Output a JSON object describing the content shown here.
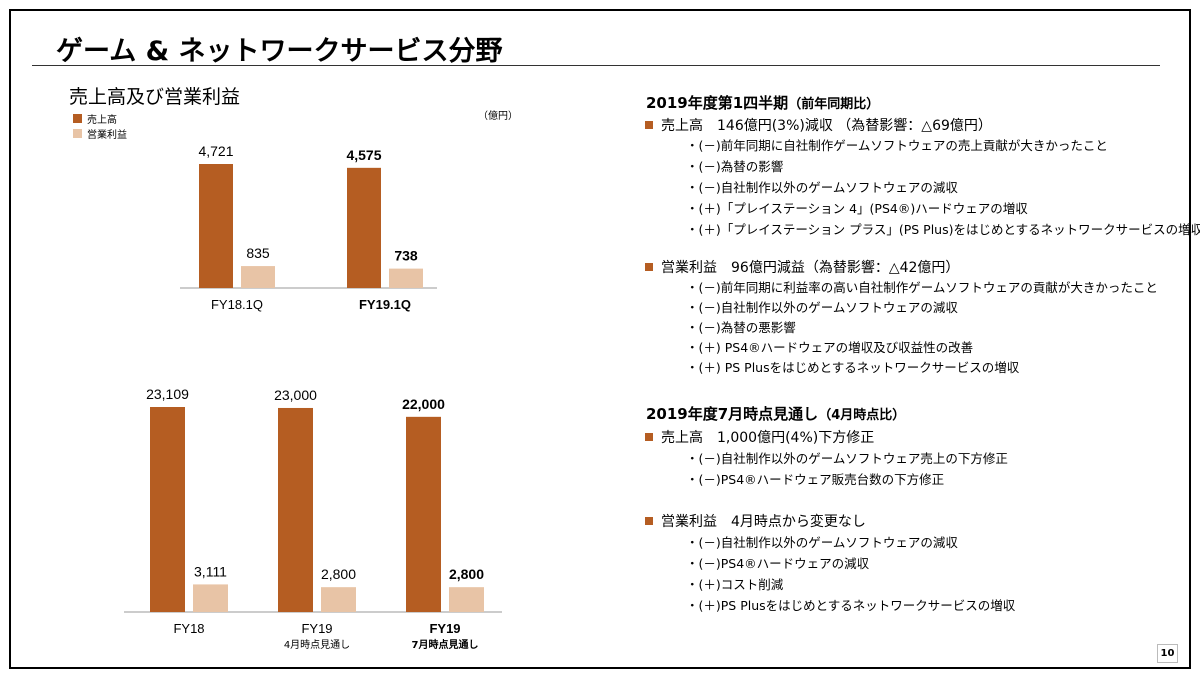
{
  "slide": {
    "title": "ゲーム & ネットワークサービス分野",
    "page_number": "10"
  },
  "left": {
    "chart_title": "売上高及び営業利益",
    "unit": "（億円）",
    "legend": [
      {
        "label": "売上高",
        "color": "#b55d22"
      },
      {
        "label": "営業利益",
        "color": "#e8c4a6"
      }
    ]
  },
  "chart_data": [
    {
      "type": "bar",
      "categories": [
        {
          "label": "FY18.1Q",
          "sublabel": "",
          "bold": false
        },
        {
          "label": "FY19.1Q",
          "sublabel": "",
          "bold": true
        }
      ],
      "series": [
        {
          "name": "売上高",
          "color": "#b55d22",
          "values": [
            4721,
            4575
          ],
          "labels": [
            "4,721",
            "4,575"
          ]
        },
        {
          "name": "営業利益",
          "color": "#e8c4a6",
          "values": [
            835,
            738
          ],
          "labels": [
            "835",
            "738"
          ]
        }
      ]
    },
    {
      "type": "bar",
      "categories": [
        {
          "label": "FY18",
          "sublabel": "",
          "bold": false
        },
        {
          "label": "FY19",
          "sublabel": "4月時点見通し",
          "bold": false
        },
        {
          "label": "FY19",
          "sublabel": "7月時点見通し",
          "bold": true
        }
      ],
      "series": [
        {
          "name": "売上高",
          "color": "#b55d22",
          "values": [
            23109,
            23000,
            22000
          ],
          "labels": [
            "23,109",
            "23,000",
            "22,000"
          ]
        },
        {
          "name": "営業利益",
          "color": "#e8c4a6",
          "values": [
            3111,
            2800,
            2800
          ],
          "labels": [
            "3,111",
            "2,800",
            "2,800"
          ]
        }
      ]
    }
  ],
  "right": {
    "q1": {
      "title": "2019年度第1四半期",
      "title_note": "（前年同期比）",
      "sales": {
        "head": "売上高　146億円(3%)減収 （為替影響：△69億円）",
        "items": [
          "・(－)前年同期に自社制作ゲームソフトウェアの売上貢献が大きかったこと",
          "・(－)為替の影響",
          "・(－)自社制作以外のゲームソフトウェアの減収",
          "・(＋)「プレイステーション 4」(PS4®)ハードウェアの増収",
          "・(＋)「プレイステーション プラス」(PS Plus)をはじめとするネットワークサービスの増収"
        ]
      },
      "op": {
        "head": "営業利益　96億円減益（為替影響：△42億円）",
        "items": [
          "・(－)前年同期に利益率の高い自社制作ゲームソフトウェアの貢献が大きかったこと",
          "・(－)自社制作以外のゲームソフトウェアの減収",
          "・(－)為替の悪影響",
          "・(＋) PS4®ハードウェアの増収及び収益性の改善",
          "・(＋) PS Plusをはじめとするネットワークサービスの増収"
        ]
      }
    },
    "fy": {
      "title": "2019年度7月時点見通し",
      "title_note": "（4月時点比）",
      "sales": {
        "head": "売上高　1,000億円(4%)下方修正",
        "items": [
          "・(－)自社制作以外のゲームソフトウェア売上の下方修正",
          "・(－)PS4®ハードウェア販売台数の下方修正"
        ]
      },
      "op": {
        "head": "営業利益　4月時点から変更なし",
        "items": [
          "・(－)自社制作以外のゲームソフトウェアの減収",
          "・(－)PS4®ハードウェアの減収",
          "・(＋)コスト削減",
          "・(＋)PS Plusをはじめとするネットワークサービスの増収"
        ]
      }
    }
  }
}
